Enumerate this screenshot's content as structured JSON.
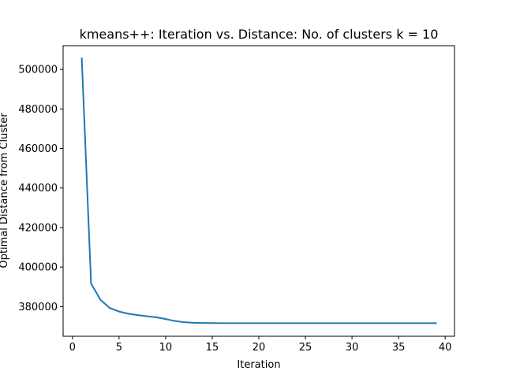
{
  "chart_data": {
    "type": "line",
    "title": "kmeans++: Iteration vs. Distance: No. of clusters k = 10",
    "xlabel": "Iteration",
    "ylabel": "Optimal Distance from Cluster",
    "xlim": [
      -1,
      41
    ],
    "ylim": [
      365000,
      512000
    ],
    "xticks": [
      0,
      5,
      10,
      15,
      20,
      25,
      30,
      35,
      40
    ],
    "xtick_labels": [
      "0",
      "5",
      "10",
      "15",
      "20",
      "25",
      "30",
      "35",
      "40"
    ],
    "yticks": [
      380000,
      400000,
      420000,
      440000,
      460000,
      480000,
      500000
    ],
    "ytick_labels": [
      "380000",
      "400000",
      "420000",
      "440000",
      "460000",
      "480000",
      "500000"
    ],
    "grid": false,
    "legend": "none",
    "series": [
      {
        "color": "#1f77b4",
        "x": [
          1,
          2,
          3,
          4,
          5,
          6,
          7,
          8,
          9,
          10,
          11,
          12,
          13,
          14,
          15,
          16,
          17,
          18,
          19,
          20,
          21,
          22,
          23,
          24,
          25,
          26,
          27,
          28,
          29,
          30,
          31,
          32,
          33,
          34,
          35,
          36,
          37,
          38,
          39
        ],
        "y": [
          505500,
          391700,
          383500,
          379300,
          377500,
          376400,
          375700,
          375100,
          374600,
          373700,
          372700,
          372100,
          371800,
          371700,
          371650,
          371600,
          371600,
          371600,
          371600,
          371600,
          371600,
          371600,
          371600,
          371600,
          371600,
          371600,
          371600,
          371600,
          371600,
          371600,
          371600,
          371600,
          371600,
          371600,
          371600,
          371600,
          371600,
          371600,
          371600
        ]
      }
    ]
  }
}
